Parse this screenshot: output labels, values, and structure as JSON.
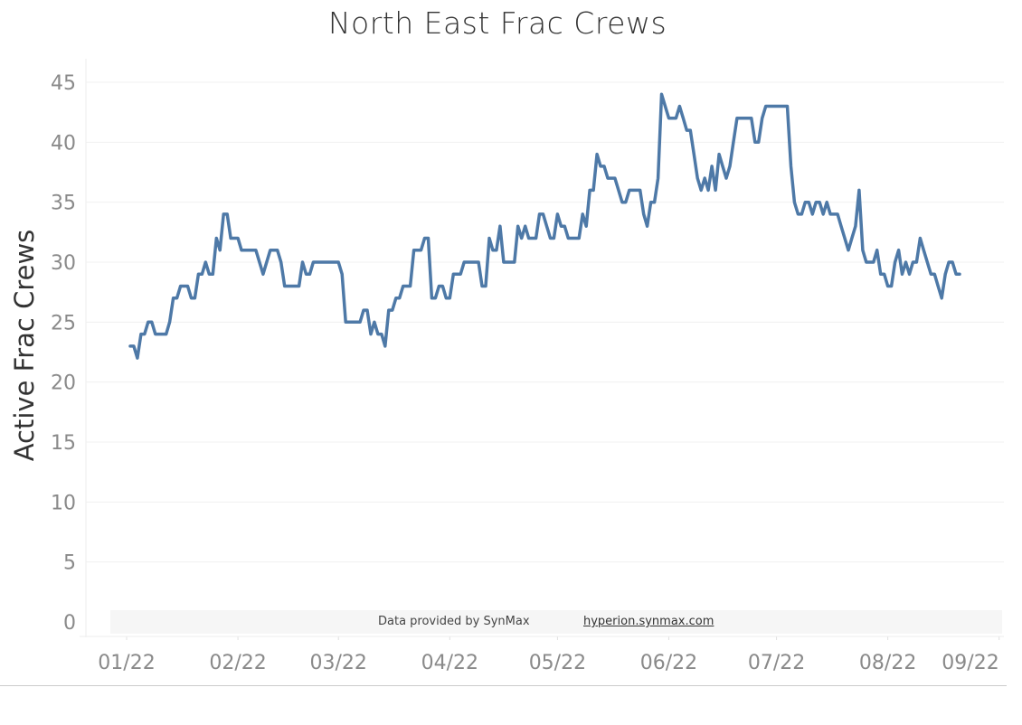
{
  "chart_data": {
    "type": "line",
    "title": "North East Frac Crews",
    "xlabel": "",
    "ylabel": "Active Frac Crews",
    "ylim": [
      0,
      45
    ],
    "yticks": [
      0,
      5,
      10,
      15,
      20,
      25,
      30,
      35,
      40,
      45
    ],
    "x_unit": "days since 2022-01-01",
    "xlim": [
      -11,
      245
    ],
    "xticks": [
      {
        "day": 0,
        "label": "01/22"
      },
      {
        "day": 31,
        "label": "02/22"
      },
      {
        "day": 59,
        "label": "03/22"
      },
      {
        "day": 90,
        "label": "04/22"
      },
      {
        "day": 120,
        "label": "05/22"
      },
      {
        "day": 151,
        "label": "06/22"
      },
      {
        "day": 181,
        "label": "07/22"
      },
      {
        "day": 212,
        "label": "08/22"
      },
      {
        "day": 243,
        "label": "09/22"
      }
    ],
    "grid": true,
    "series": [
      {
        "name": "Active Frac Crews",
        "color": "#4e79a7",
        "days": [
          1,
          2,
          3,
          4,
          5,
          6,
          7,
          8,
          11,
          12,
          13,
          14,
          15,
          17,
          18,
          19,
          20,
          21,
          22,
          23,
          24,
          25,
          26,
          27,
          28,
          29,
          31,
          32,
          36,
          37,
          38,
          40,
          42,
          43,
          44,
          48,
          49,
          50,
          51,
          52,
          59,
          60,
          61,
          65,
          66,
          67,
          68,
          69,
          70,
          71,
          72,
          73,
          74,
          75,
          76,
          77,
          79,
          80,
          82,
          83,
          84,
          85,
          86,
          87,
          88,
          89,
          90,
          91,
          93,
          94,
          98,
          99,
          100,
          101,
          102,
          103,
          104,
          105,
          108,
          109,
          110,
          111,
          112,
          114,
          115,
          116,
          117,
          118,
          119,
          120,
          121,
          122,
          123,
          126,
          127,
          128,
          129,
          130,
          131,
          132,
          133,
          134,
          136,
          137,
          138,
          139,
          140,
          143,
          144,
          145,
          146,
          147,
          148,
          149,
          150,
          151,
          153,
          154,
          155,
          156,
          157,
          158,
          159,
          160,
          161,
          162,
          163,
          164,
          165,
          166,
          167,
          168,
          169,
          170,
          174,
          175,
          176,
          177,
          178,
          184,
          185,
          186,
          187,
          188,
          189,
          190,
          191,
          192,
          193,
          194,
          195,
          196,
          198,
          199,
          201,
          202,
          203,
          204,
          205,
          206,
          208,
          209,
          210,
          211,
          212,
          213,
          214,
          215,
          216,
          217,
          218,
          219,
          220,
          221,
          222,
          223,
          224,
          225,
          226,
          227,
          228,
          229,
          230,
          231,
          232
        ],
        "values": [
          23,
          23,
          22,
          24,
          24,
          25,
          25,
          24,
          24,
          25,
          27,
          27,
          28,
          28,
          27,
          27,
          29,
          29,
          30,
          29,
          29,
          32,
          31,
          34,
          34,
          32,
          32,
          31,
          31,
          30,
          29,
          31,
          31,
          30,
          28,
          28,
          30,
          29,
          29,
          30,
          30,
          29,
          25,
          25,
          26,
          26,
          24,
          25,
          24,
          24,
          23,
          26,
          26,
          27,
          27,
          28,
          28,
          31,
          31,
          32,
          32,
          27,
          27,
          28,
          28,
          27,
          27,
          29,
          29,
          30,
          30,
          28,
          28,
          32,
          31,
          31,
          33,
          30,
          30,
          33,
          32,
          33,
          32,
          32,
          34,
          34,
          33,
          32,
          32,
          34,
          33,
          33,
          32,
          32,
          34,
          33,
          36,
          36,
          39,
          38,
          38,
          37,
          37,
          36,
          35,
          35,
          36,
          36,
          34,
          33,
          35,
          35,
          37,
          44,
          43,
          42,
          42,
          43,
          42,
          41,
          41,
          39,
          37,
          36,
          37,
          36,
          38,
          36,
          39,
          38,
          37,
          38,
          40,
          42,
          42,
          40,
          40,
          42,
          43,
          43,
          38,
          35,
          34,
          34,
          35,
          35,
          34,
          35,
          35,
          34,
          35,
          34,
          34,
          33,
          31,
          32,
          33,
          36,
          31,
          30,
          30,
          31,
          29,
          29,
          28,
          28,
          30,
          31,
          29,
          30,
          29,
          30,
          30,
          32,
          31,
          30,
          29,
          29,
          28,
          27,
          29,
          30,
          30,
          29,
          29
        ]
      }
    ]
  },
  "footer": {
    "credit": "Data provided by SynMax",
    "link": "hyperion.synmax.com"
  }
}
